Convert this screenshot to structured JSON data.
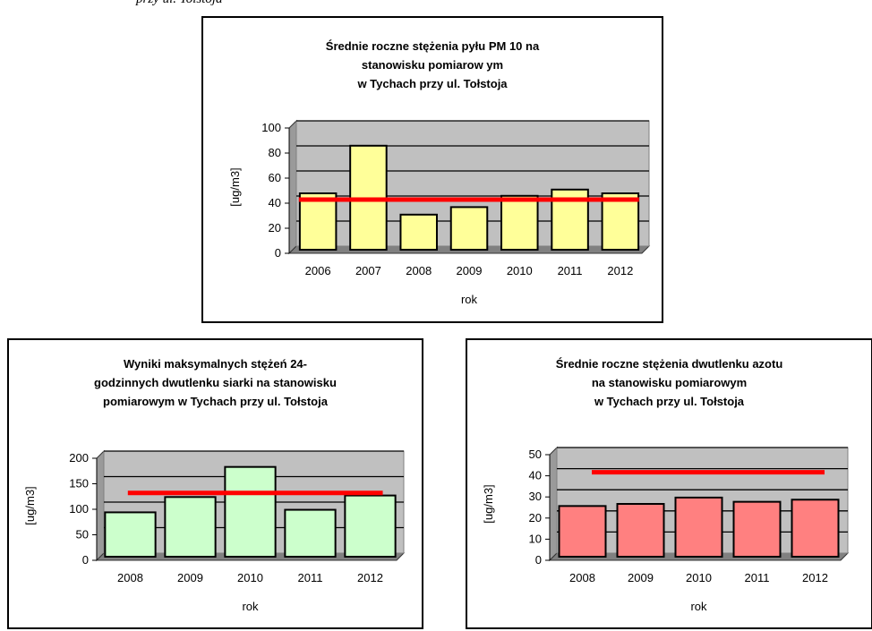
{
  "page": {
    "caption": "przy ul. Tołstoja"
  },
  "chart_data": [
    {
      "type": "bar",
      "title": "Średnie roczne stężenia pyłu PM 10 na\nstanowisku pomiarow ym\nw Tychach przy ul. Tołstoja",
      "xlabel": "rok",
      "ylabel": "[ug/m3]",
      "categories": [
        "2006",
        "2007",
        "2008",
        "2009",
        "2010",
        "2011",
        "2012"
      ],
      "values": [
        45,
        83,
        28,
        34,
        43,
        48,
        45
      ],
      "ylim": [
        0,
        100
      ],
      "yticks": [
        0,
        20,
        40,
        60,
        80,
        100
      ],
      "limit_line": 40,
      "bar_color": "#ffff99",
      "plot_bg": "#c0c0c0",
      "limit_color": "#ff0000",
      "grid": true
    },
    {
      "type": "bar",
      "title": "Wyniki maksymalnych stężeń 24-\ngodzinnych dwutlenku siarki na stanowisku\npomiarowym w Tychach przy ul. Tołstoja",
      "xlabel": "rok",
      "ylabel": "[ug/m3]",
      "categories": [
        "2008",
        "2009",
        "2010",
        "2011",
        "2012"
      ],
      "values": [
        87,
        117,
        176,
        92,
        120
      ],
      "ylim": [
        0,
        200
      ],
      "yticks": [
        0,
        50,
        100,
        150,
        200
      ],
      "limit_line": 125,
      "bar_color": "#ccffcc",
      "plot_bg": "#c0c0c0",
      "limit_color": "#ff0000",
      "grid": true
    },
    {
      "type": "bar",
      "title": "Średnie roczne stężenia dwutlenku azotu\nna stanowisku pomiarowym\nw Tychach przy ul. Tołstoja",
      "xlabel": "rok",
      "ylabel": "[ug/m3]",
      "categories": [
        "2008",
        "2009",
        "2010",
        "2011",
        "2012"
      ],
      "values": [
        24,
        25,
        28,
        26,
        27
      ],
      "ylim": [
        0,
        50
      ],
      "yticks": [
        0,
        10,
        20,
        30,
        40,
        50
      ],
      "limit_line": 40,
      "bar_color": "#ff8080",
      "plot_bg": "#c0c0c0",
      "limit_color": "#ff0000",
      "grid": true
    }
  ]
}
